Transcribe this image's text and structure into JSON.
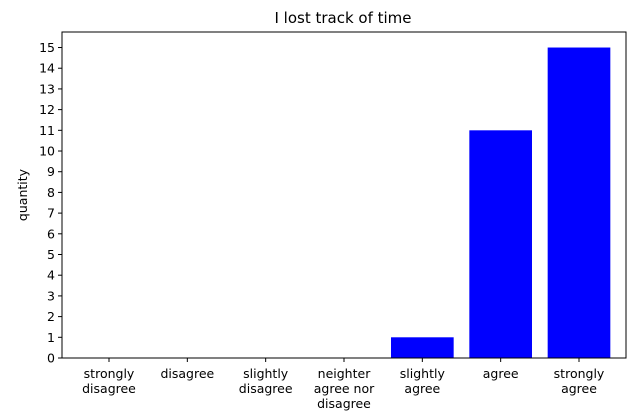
{
  "chart_data": {
    "type": "bar",
    "title": "I lost track of time",
    "xlabel": "",
    "ylabel": "quantity",
    "categories": [
      [
        "strongly",
        "disagree"
      ],
      [
        "disagree"
      ],
      [
        "slightly",
        "disagree"
      ],
      [
        "neighter",
        "agree nor",
        "disagree"
      ],
      [
        "slightly",
        "agree"
      ],
      [
        "agree"
      ],
      [
        "strongly",
        "agree"
      ]
    ],
    "values": [
      0,
      0,
      0,
      0,
      1,
      11,
      15
    ],
    "ylim": [
      0,
      15.75
    ],
    "yticks": [
      0,
      1,
      2,
      3,
      4,
      5,
      6,
      7,
      8,
      9,
      10,
      11,
      12,
      13,
      14,
      15
    ],
    "bar_color": "#0000ff",
    "grid": false,
    "legend": "none"
  }
}
